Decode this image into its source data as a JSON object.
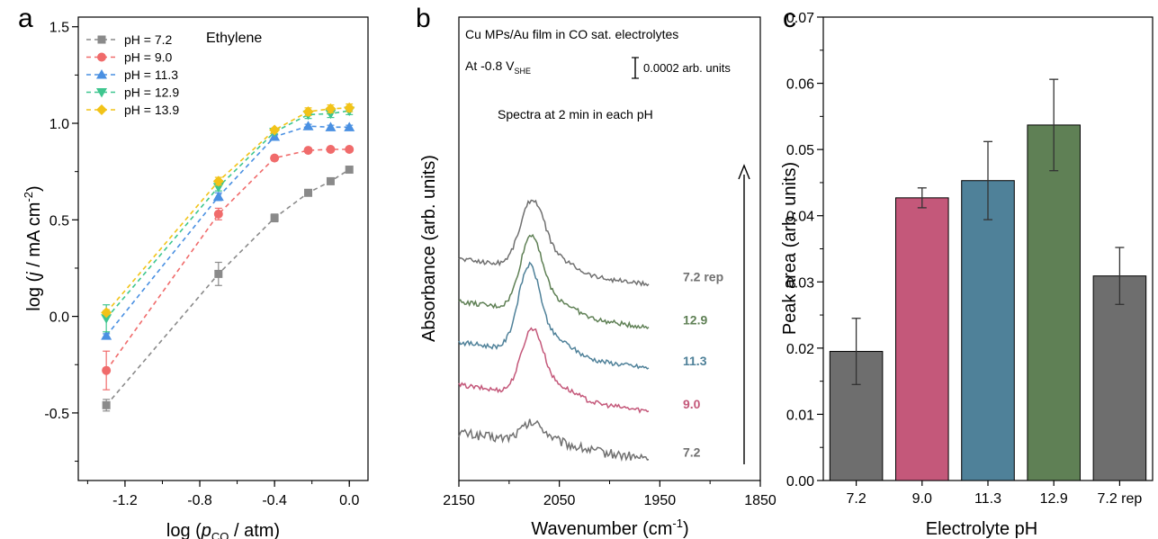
{
  "panel_letters": [
    "a",
    "b",
    "c"
  ],
  "colors": {
    "s72": "#8a8a8a",
    "s90": "#f06b6b",
    "s113": "#4a90e2",
    "s129": "#3ec68f",
    "s139": "#f2c318",
    "bar72": "#6e6e6e",
    "bar90": "#c4587a",
    "bar113": "#4f8199",
    "bar129": "#5f8055",
    "spec72": "#707070",
    "spec90": "#c4587a",
    "spec113": "#4f8199",
    "spec129": "#5f8055"
  },
  "chart_data": [
    {
      "type": "scatter",
      "annotation": "Ethylene",
      "xlabel_parts": {
        "pre": "log (",
        "var": "p",
        "sub": "CO",
        "post": " / atm)"
      },
      "ylabel_parts": {
        "pre": "log (",
        "var": "j",
        "mid": " / mA cm",
        "sup": "-2",
        "post": ")"
      },
      "xlim": [
        -1.45,
        0.1
      ],
      "ylim": [
        -0.85,
        1.55
      ],
      "xticks": [
        "-1.2",
        "-0.8",
        "-0.4",
        "0.0"
      ],
      "yticks": [
        "-0.5",
        "0.0",
        "0.5",
        "1.0",
        "1.5"
      ],
      "x": [
        -1.3,
        -0.7,
        -0.4,
        -0.22,
        -0.1,
        0.0
      ],
      "series": [
        {
          "name": "pH = 7.2",
          "marker": "square",
          "color_key": "s72",
          "y": [
            -0.46,
            0.22,
            0.51,
            0.64,
            0.7,
            0.76
          ],
          "err": [
            0.03,
            0.06,
            0.02,
            0.01,
            0.01,
            0.01
          ]
        },
        {
          "name": "pH = 9.0",
          "marker": "circle",
          "color_key": "s90",
          "y": [
            -0.28,
            0.53,
            0.82,
            0.86,
            0.865,
            0.865
          ],
          "err": [
            0.1,
            0.03,
            0.01,
            0.01,
            0.01,
            0.01
          ]
        },
        {
          "name": "pH = 11.3",
          "marker": "triangle-up",
          "color_key": "s113",
          "y": [
            -0.1,
            0.62,
            0.93,
            0.985,
            0.98,
            0.98
          ],
          "err": [
            0.01,
            0.02,
            0.01,
            0.01,
            0.01,
            0.01
          ]
        },
        {
          "name": "pH = 12.9",
          "marker": "triangle-down",
          "color_key": "s129",
          "y": [
            -0.01,
            0.67,
            0.955,
            1.045,
            1.05,
            1.065
          ],
          "err": [
            0.07,
            0.02,
            0.01,
            0.02,
            0.02,
            0.02
          ]
        },
        {
          "name": "pH = 13.9",
          "marker": "diamond",
          "color_key": "s139",
          "y": [
            0.02,
            0.7,
            0.965,
            1.06,
            1.075,
            1.08
          ],
          "err": [
            0.01,
            0.02,
            0.01,
            0.02,
            0.02,
            0.02
          ]
        }
      ]
    },
    {
      "type": "line",
      "title": "Cu MPs/Au film in CO sat. electrolytes",
      "potential": {
        "pre": "At -0.8 V",
        "sub": "SHE"
      },
      "scalebar_label": "0.0002 arb. units",
      "note": "Spectra at 2 min in each pH",
      "xlabel_parts": {
        "pre": "Wavenumber (cm",
        "sup": "-1",
        "post": ")"
      },
      "ylabel": "Absorbance (arb. units)",
      "xlim": [
        2150,
        1850
      ],
      "xticks": [
        2150,
        2050,
        1950,
        1850
      ],
      "spectra": [
        {
          "name": "7.2",
          "color_key": "spec72",
          "offset": 0.0,
          "peak": 0.4,
          "center": 2076,
          "width": 12,
          "noise": 0.1
        },
        {
          "name": "9.0",
          "color_key": "spec90",
          "offset": 1.0,
          "peak": 1.35,
          "center": 2077,
          "width": 11,
          "noise": 0.05
        },
        {
          "name": "11.3",
          "color_key": "spec113",
          "offset": 1.9,
          "peak": 1.75,
          "center": 2080,
          "width": 11,
          "noise": 0.05
        },
        {
          "name": "12.9",
          "color_key": "spec129",
          "offset": 2.75,
          "peak": 1.55,
          "center": 2078,
          "width": 11,
          "noise": 0.05
        },
        {
          "name": "7.2 rep",
          "color_key": "spec72",
          "offset": 3.65,
          "peak": 1.4,
          "center": 2077,
          "width": 12,
          "noise": 0.05
        }
      ]
    },
    {
      "type": "bar",
      "categories": [
        "7.2",
        "9.0",
        "11.3",
        "12.9",
        "7.2 rep"
      ],
      "values": [
        0.0195,
        0.0427,
        0.0453,
        0.0537,
        0.0309
      ],
      "errors": [
        0.005,
        0.0015,
        0.0059,
        0.0069,
        0.0043
      ],
      "color_keys": [
        "bar72",
        "bar90",
        "bar113",
        "bar129",
        "bar72"
      ],
      "xlabel": "Electrolyte pH",
      "ylabel": "Peak area (arb. units)",
      "ylim": [
        0,
        0.07
      ],
      "yticks": [
        "0.00",
        "0.01",
        "0.02",
        "0.03",
        "0.04",
        "0.05",
        "0.06",
        "0.07"
      ]
    }
  ]
}
